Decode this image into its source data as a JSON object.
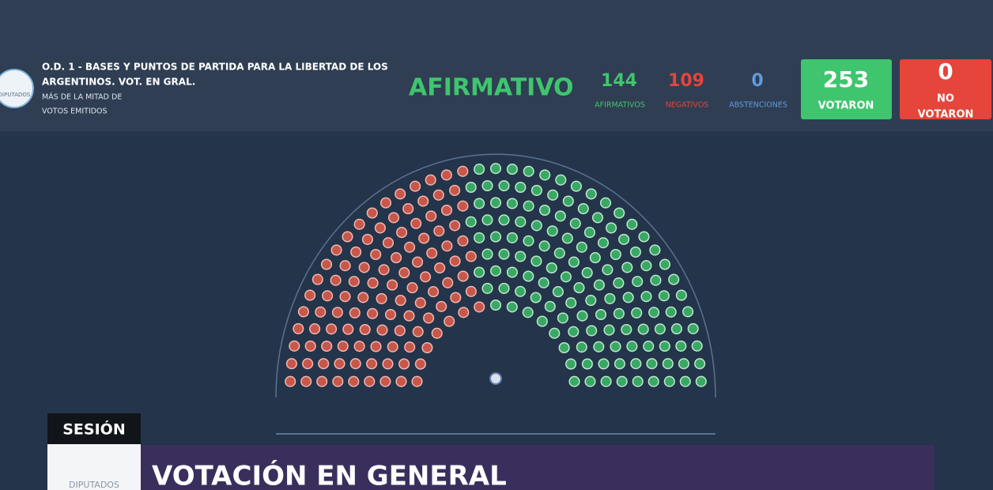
{
  "header": {
    "logo_text": "DIPUTADOS",
    "title_lines": [
      "O.D. 1 - BASES Y PUNTOS DE PARTIDA PARA LA LIBERTAD DE LOS",
      "ARGENTINOS. VOT. EN GRAL."
    ],
    "subtitle_lines": [
      "MÁS DE LA MITAD DE",
      "VOTOS EMITIDOS"
    ],
    "result": "AFIRMATIVO",
    "counts": [
      {
        "value": 144,
        "label": "AFIRMATIVOS"
      },
      {
        "value": 109,
        "label": "NEGATIVOS"
      },
      {
        "value": 0,
        "label": "ABSTENCIONES"
      }
    ],
    "voted": {
      "value": 253,
      "label": "VOTARON"
    },
    "not_voted": {
      "value": 0,
      "label_lines": [
        "NO",
        "VOTARON"
      ]
    }
  },
  "footer": {
    "session": "SESIÓN",
    "logo_text": "DIPUTADOS",
    "banner": "VOTACIÓN EN GENERAL"
  }
}
